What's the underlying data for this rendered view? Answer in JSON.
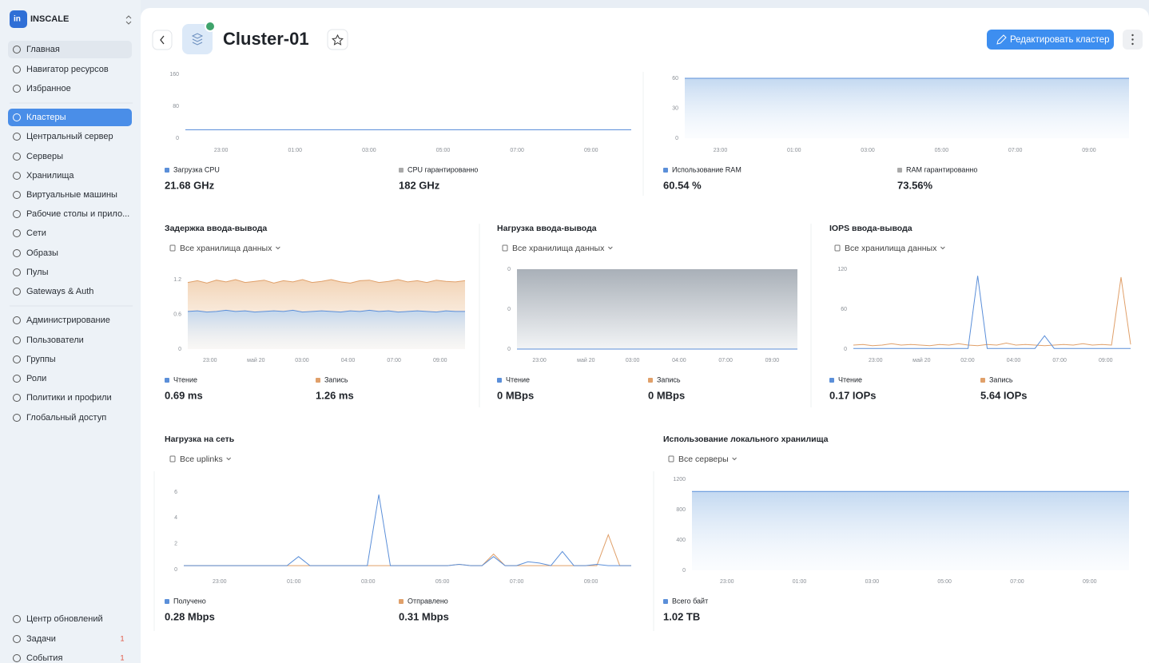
{
  "sidebar": {
    "logo": "INSCALE",
    "groups": [
      {
        "items": [
          "Главная",
          "Навигатор ресурсов",
          "Избранное"
        ]
      },
      {
        "items": [
          "Кластеры",
          "Центральный сервер",
          "Серверы",
          "Хранилища",
          "Виртуальные машины",
          "Рабочие столы и прило...",
          "Сети",
          "Образы",
          "Пулы",
          "Gateways & Auth"
        ]
      },
      {
        "items": [
          "Администрирование",
          "Пользователи",
          "Группы",
          "Роли",
          "Политики и профили",
          "Глобальный доступ"
        ]
      }
    ],
    "active": "Кластеры",
    "bottom": [
      {
        "label": "Центр обновлений"
      },
      {
        "label": "Задачи",
        "badge": "1"
      },
      {
        "label": "События",
        "badge": "1"
      }
    ]
  },
  "header": {
    "title": "Cluster-01",
    "button": "Редактировать кластер"
  },
  "panels": [
    {
      "ylim": [
        0,
        160
      ],
      "yticks": [
        "0",
        "80",
        "160"
      ],
      "xticks": [
        "23:00",
        "01:00",
        "03:00",
        "05:00",
        "07:00",
        "09:00"
      ],
      "series": [
        {
          "name": "Загрузка CPU",
          "color": "#5b8fd9",
          "fill": false,
          "summary": "21.68 GHz",
          "values": [
            21,
            21,
            21,
            21,
            21,
            21,
            21,
            21,
            21,
            21,
            21,
            21
          ]
        },
        {
          "name": "CPU гарантированно",
          "color": "#a9a9a9",
          "summary": "182 GHz"
        }
      ]
    },
    {
      "ylim": [
        0,
        60
      ],
      "yticks": [
        "0",
        "30",
        "60"
      ],
      "xticks": [
        "23:00",
        "01:00",
        "03:00",
        "05:00",
        "07:00",
        "09:00"
      ],
      "series": [
        {
          "name": "Использование RAM",
          "color": "#5b8fd9",
          "fill": true,
          "summary": "60.54 %",
          "values": [
            60,
            60,
            60,
            60,
            60,
            60,
            60,
            60,
            60,
            60,
            60,
            60
          ]
        },
        {
          "name": "RAM гарантированно",
          "color": "#a9a9a9",
          "summary": "73.56%"
        }
      ]
    },
    {
      "title": "Задержка ввода-вывода",
      "filter": "Все хранилища данных",
      "ylim": [
        0,
        1.2
      ],
      "yticks": [
        "0",
        "0.6",
        "1.2"
      ],
      "xticks": [
        "23:00",
        "май 20",
        "03:00",
        "04:00",
        "07:00",
        "09:00"
      ],
      "series": [
        {
          "name": "Чтение",
          "color": "#5b8fd9",
          "fill": true,
          "summary": "0.69 ms",
          "values": [
            0.65,
            0.66,
            0.64,
            0.65,
            0.67,
            0.65,
            0.66,
            0.64,
            0.65,
            0.66,
            0.65,
            0.67,
            0.64,
            0.65,
            0.66,
            0.65,
            0.64,
            0.66,
            0.65,
            0.67,
            0.65,
            0.66,
            0.64,
            0.65,
            0.66,
            0.65,
            0.64,
            0.66,
            0.65,
            0.65
          ]
        },
        {
          "name": "Запись",
          "color": "#e0a06a",
          "fill": true,
          "summary": "1.26 ms",
          "values": [
            1.15,
            1.18,
            1.14,
            1.19,
            1.16,
            1.2,
            1.15,
            1.17,
            1.19,
            1.14,
            1.18,
            1.16,
            1.2,
            1.15,
            1.17,
            1.2,
            1.16,
            1.14,
            1.18,
            1.19,
            1.15,
            1.17,
            1.2,
            1.16,
            1.18,
            1.15,
            1.19,
            1.17,
            1.16,
            1.18
          ]
        }
      ]
    },
    {
      "title": "Нагрузка ввода-вывода",
      "filter": "Все хранилища данных",
      "ylim": [
        0,
        1
      ],
      "yticks": [
        "0",
        "0",
        "0"
      ],
      "xticks": [
        "23:00",
        "май 20",
        "03:00",
        "04:00",
        "07:00",
        "09:00"
      ],
      "shade": true,
      "series": [
        {
          "name": "Чтение",
          "color": "#5b8fd9",
          "fill": false,
          "summary": "0 MBps",
          "values": [
            0,
            0,
            0,
            0,
            0,
            0,
            0,
            0,
            0,
            0,
            0,
            0
          ]
        },
        {
          "name": "Запись",
          "color": "#e0a06a",
          "fill": false,
          "summary": "0 MBps",
          "values": [
            0,
            0,
            0,
            0,
            0,
            0,
            0,
            0,
            0,
            0,
            0,
            0
          ]
        }
      ]
    },
    {
      "title": "IOPS ввода-вывода",
      "filter": "Все хранилища данных",
      "ylim": [
        0,
        120
      ],
      "yticks": [
        "0",
        "60",
        "120"
      ],
      "xticks": [
        "23:00",
        "май 20",
        "02:00",
        "04:00",
        "07:00",
        "09:00"
      ],
      "series": [
        {
          "name": "Чтение",
          "color": "#5b8fd9",
          "fill": false,
          "summary": "0.17 IOPs",
          "values": [
            1,
            1,
            1,
            1,
            1,
            1,
            1,
            1,
            1,
            1,
            1,
            1,
            1,
            110,
            1,
            1,
            1,
            1,
            1,
            1,
            20,
            1,
            1,
            1,
            1,
            1,
            1,
            1,
            1,
            1
          ]
        },
        {
          "name": "Запись",
          "color": "#e0a06a",
          "fill": false,
          "summary": "5.64 IOPs",
          "values": [
            6,
            7,
            5,
            6,
            8,
            6,
            7,
            6,
            5,
            7,
            6,
            8,
            6,
            5,
            7,
            6,
            9,
            6,
            7,
            6,
            5,
            6,
            7,
            6,
            8,
            6,
            7,
            6,
            108,
            7
          ]
        }
      ]
    },
    {
      "title": "Нагрузка на сеть",
      "filter": "Все uplinks",
      "ylim": [
        0,
        6
      ],
      "yticks": [
        "0",
        "2",
        "4",
        "6"
      ],
      "xticks": [
        "23:00",
        "01:00",
        "03:00",
        "05:00",
        "07:00",
        "09:00"
      ],
      "series": [
        {
          "name": "Получено",
          "color": "#5b8fd9",
          "fill": false,
          "summary": "0.28 Mbps",
          "values": [
            0.3,
            0.3,
            0.3,
            0.3,
            0.3,
            0.3,
            0.3,
            0.3,
            0.3,
            0.3,
            1.0,
            0.3,
            0.3,
            0.3,
            0.3,
            0.3,
            0.3,
            5.8,
            0.3,
            0.3,
            0.3,
            0.3,
            0.3,
            0.3,
            0.4,
            0.3,
            0.3,
            1.0,
            0.3,
            0.3,
            0.6,
            0.5,
            0.3,
            1.4,
            0.3,
            0.3,
            0.4,
            0.3,
            0.3,
            0.3
          ]
        },
        {
          "name": "Отправлено",
          "color": "#e0a06a",
          "fill": false,
          "summary": "0.31 Mbps",
          "values": [
            0.3,
            0.3,
            0.3,
            0.3,
            0.3,
            0.3,
            0.3,
            0.3,
            0.3,
            0.3,
            0.3,
            0.3,
            0.3,
            0.3,
            0.3,
            0.3,
            0.3,
            0.3,
            0.3,
            0.3,
            0.3,
            0.3,
            0.3,
            0.3,
            0.4,
            0.3,
            0.3,
            1.2,
            0.3,
            0.3,
            0.3,
            0.3,
            0.3,
            0.3,
            0.3,
            0.3,
            0.3,
            2.7,
            0.3,
            0.3
          ]
        }
      ]
    },
    {
      "title": "Использование локального хранилища",
      "filter": "Все серверы",
      "ylim": [
        0,
        1200
      ],
      "yticks": [
        "0",
        "400",
        "800",
        "1200"
      ],
      "xticks": [
        "23:00",
        "01:00",
        "03:00",
        "05:00",
        "07:00",
        "09:00"
      ],
      "series": [
        {
          "name": "Всего байт",
          "color": "#5b8fd9",
          "fill": true,
          "summary": "1.02 TB",
          "values": [
            1040,
            1040,
            1040,
            1040,
            1040,
            1040,
            1040,
            1040,
            1040,
            1040,
            1040,
            1040
          ]
        }
      ]
    }
  ]
}
